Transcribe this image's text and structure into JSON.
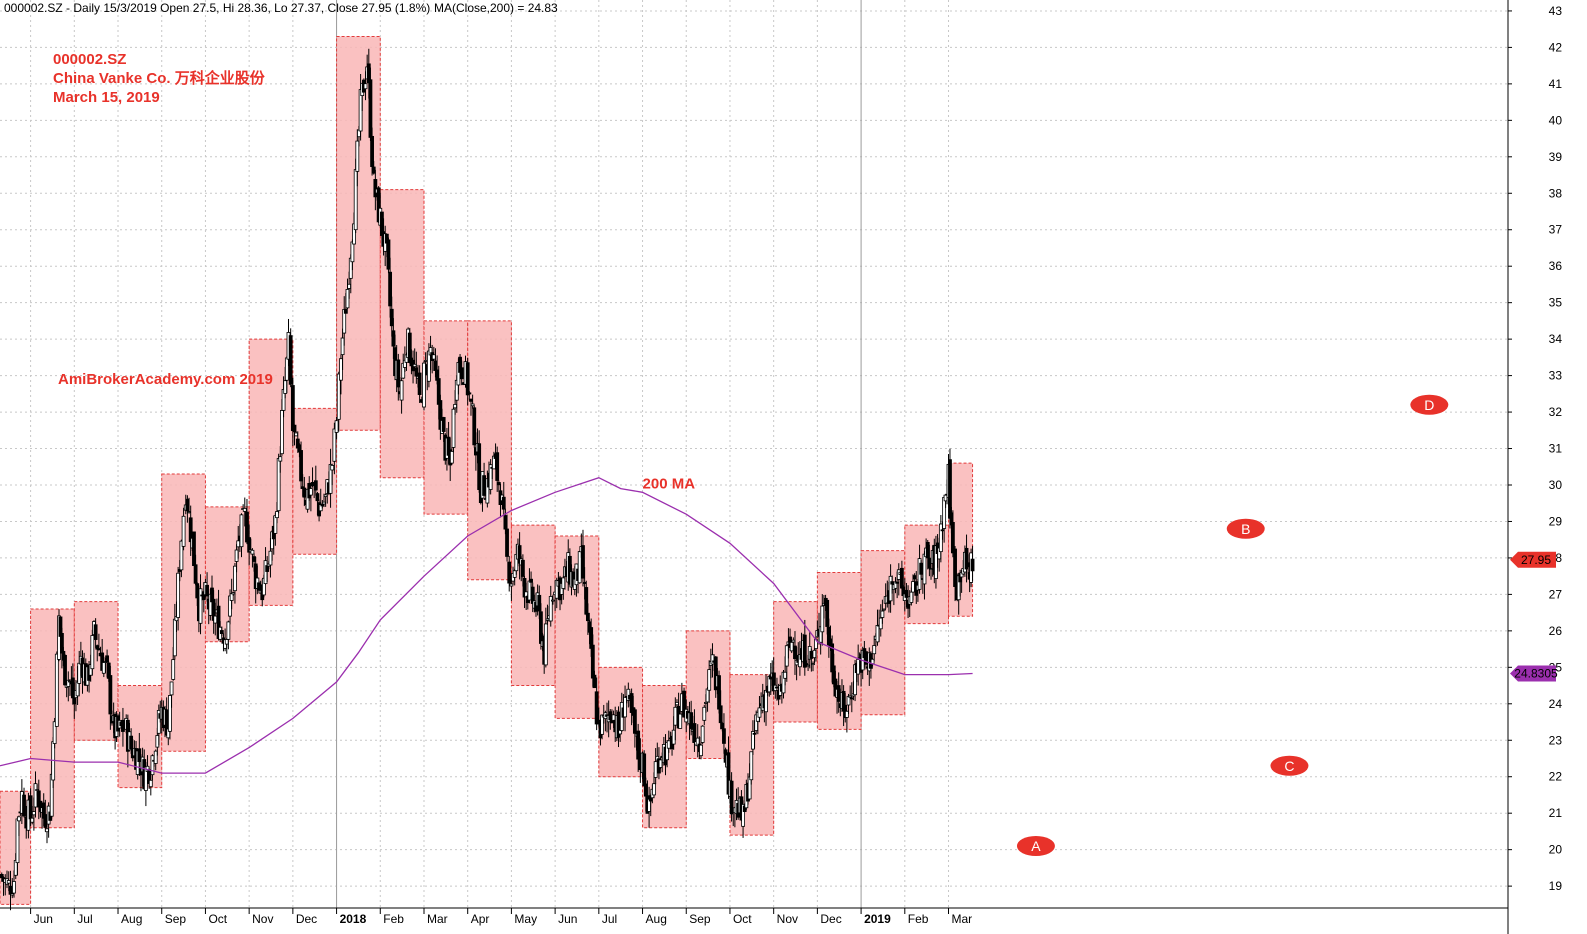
{
  "header": {
    "symbol_line": "000002.SZ - Daily 15/3/2019 Open 27.5, Hi 28.36, Lo 27.37, Close 27.95 (1.8%)",
    "ma_line": "MA(Close,200) = 24.83"
  },
  "annotations": {
    "ticker": "000002.SZ",
    "company": "China Vanke Co. 万科企业股份",
    "date": "March 15, 2019",
    "brand": "AmiBrokerAcademy.com  2019",
    "ma_label": "200 MA"
  },
  "markers": [
    {
      "label": "A",
      "x": 24.0,
      "y": 20.1
    },
    {
      "label": "B",
      "x": 28.8,
      "y": 28.8
    },
    {
      "label": "C",
      "x": 29.8,
      "y": 22.3
    },
    {
      "label": "D",
      "x": 33.0,
      "y": 32.2
    }
  ],
  "price_tags": {
    "close": "27.95",
    "ma": "24.8305"
  },
  "colors": {
    "box_fill": "#f9b6b6",
    "box_border": "#e23b3b",
    "ma_line": "#9b2fae",
    "candle": "#000000",
    "annotation": "#e8322a",
    "close_tag": "#e8322a",
    "ma_tag": "#9b2fae",
    "grid": "#c8c8c8"
  },
  "chart_data": {
    "type": "candlestick",
    "title": "000002.SZ - Daily",
    "x_unit": "month index (0 = start of May 2017)",
    "xlim": [
      0.3,
      34.8
    ],
    "ylim": [
      18.4,
      43.3
    ],
    "yticks": [
      19,
      20,
      21,
      22,
      23,
      24,
      25,
      26,
      27,
      28,
      29,
      30,
      31,
      32,
      33,
      34,
      35,
      36,
      37,
      38,
      39,
      40,
      41,
      42,
      43
    ],
    "xticks": [
      {
        "label": "Jun",
        "x": 1
      },
      {
        "label": "Jul",
        "x": 2
      },
      {
        "label": "Aug",
        "x": 3
      },
      {
        "label": "Sep",
        "x": 4
      },
      {
        "label": "Oct",
        "x": 5
      },
      {
        "label": "Nov",
        "x": 6
      },
      {
        "label": "Dec",
        "x": 7
      },
      {
        "label": "2018",
        "x": 8,
        "bold": true
      },
      {
        "label": "Feb",
        "x": 9
      },
      {
        "label": "Mar",
        "x": 10
      },
      {
        "label": "Apr",
        "x": 11
      },
      {
        "label": "May",
        "x": 12
      },
      {
        "label": "Jun",
        "x": 13
      },
      {
        "label": "Jul",
        "x": 14
      },
      {
        "label": "Aug",
        "x": 15
      },
      {
        "label": "Sep",
        "x": 16
      },
      {
        "label": "Oct",
        "x": 17
      },
      {
        "label": "Nov",
        "x": 18
      },
      {
        "label": "Dec",
        "x": 19
      },
      {
        "label": "2019",
        "x": 20,
        "bold": true
      },
      {
        "label": "Feb",
        "x": 21
      },
      {
        "label": "Mar",
        "x": 22
      }
    ],
    "boxes": [
      {
        "x0": 0.3,
        "x1": 1.0,
        "high": 21.6,
        "low": 18.5
      },
      {
        "x0": 1.0,
        "x1": 2.0,
        "high": 26.6,
        "low": 20.6
      },
      {
        "x0": 2.0,
        "x1": 3.0,
        "high": 26.8,
        "low": 23.0
      },
      {
        "x0": 3.0,
        "x1": 4.0,
        "high": 24.5,
        "low": 21.7
      },
      {
        "x0": 4.0,
        "x1": 5.0,
        "high": 30.3,
        "low": 22.7
      },
      {
        "x0": 5.0,
        "x1": 6.0,
        "high": 29.4,
        "low": 25.7
      },
      {
        "x0": 6.0,
        "x1": 7.0,
        "high": 34.0,
        "low": 26.7
      },
      {
        "x0": 7.0,
        "x1": 8.0,
        "high": 32.1,
        "low": 28.1
      },
      {
        "x0": 8.0,
        "x1": 9.0,
        "high": 42.3,
        "low": 31.5
      },
      {
        "x0": 9.0,
        "x1": 10.0,
        "high": 38.1,
        "low": 30.2
      },
      {
        "x0": 10.0,
        "x1": 11.0,
        "high": 34.5,
        "low": 29.2
      },
      {
        "x0": 11.0,
        "x1": 12.0,
        "high": 34.5,
        "low": 27.4
      },
      {
        "x0": 12.0,
        "x1": 13.0,
        "high": 28.9,
        "low": 24.5
      },
      {
        "x0": 13.0,
        "x1": 14.0,
        "high": 28.6,
        "low": 23.6
      },
      {
        "x0": 14.0,
        "x1": 15.0,
        "high": 25.0,
        "low": 22.0
      },
      {
        "x0": 15.0,
        "x1": 16.0,
        "high": 24.5,
        "low": 20.6
      },
      {
        "x0": 16.0,
        "x1": 17.0,
        "high": 26.0,
        "low": 22.5
      },
      {
        "x0": 17.0,
        "x1": 18.0,
        "high": 24.8,
        "low": 20.4
      },
      {
        "x0": 18.0,
        "x1": 19.0,
        "high": 26.8,
        "low": 23.5
      },
      {
        "x0": 19.0,
        "x1": 20.0,
        "high": 27.6,
        "low": 23.3
      },
      {
        "x0": 20.0,
        "x1": 21.0,
        "high": 28.2,
        "low": 23.7
      },
      {
        "x0": 21.0,
        "x1": 22.0,
        "high": 28.9,
        "low": 26.2
      },
      {
        "x0": 22.0,
        "x1": 22.55,
        "high": 30.6,
        "low": 26.4
      }
    ],
    "price_path": [
      [
        0.3,
        19.3
      ],
      [
        0.5,
        19.0
      ],
      [
        0.62,
        19.2
      ],
      [
        0.7,
        20.8
      ],
      [
        0.8,
        21.5
      ],
      [
        0.9,
        21.0
      ],
      [
        1.0,
        20.9
      ],
      [
        1.15,
        21.6
      ],
      [
        1.3,
        20.9
      ],
      [
        1.45,
        21.1
      ],
      [
        1.55,
        23.9
      ],
      [
        1.65,
        26.3
      ],
      [
        1.75,
        25.0
      ],
      [
        1.9,
        24.6
      ],
      [
        2.0,
        24.0
      ],
      [
        2.15,
        25.3
      ],
      [
        2.3,
        24.6
      ],
      [
        2.45,
        25.9
      ],
      [
        2.6,
        25.4
      ],
      [
        2.75,
        24.8
      ],
      [
        2.9,
        23.3
      ],
      [
        3.0,
        23.2
      ],
      [
        3.15,
        23.4
      ],
      [
        3.3,
        22.8
      ],
      [
        3.45,
        22.6
      ],
      [
        3.6,
        22.1
      ],
      [
        3.75,
        22.3
      ],
      [
        3.9,
        23.3
      ],
      [
        4.0,
        23.8
      ],
      [
        4.15,
        23.4
      ],
      [
        4.3,
        25.9
      ],
      [
        4.45,
        28.6
      ],
      [
        4.55,
        29.9
      ],
      [
        4.7,
        28.4
      ],
      [
        4.85,
        26.7
      ],
      [
        5.0,
        26.9
      ],
      [
        5.15,
        26.5
      ],
      [
        5.3,
        26.2
      ],
      [
        5.45,
        25.9
      ],
      [
        5.6,
        26.9
      ],
      [
        5.75,
        28.4
      ],
      [
        5.9,
        29.1
      ],
      [
        6.0,
        28.5
      ],
      [
        6.15,
        27.5
      ],
      [
        6.3,
        27.1
      ],
      [
        6.45,
        27.9
      ],
      [
        6.6,
        29.0
      ],
      [
        6.75,
        31.8
      ],
      [
        6.9,
        33.8
      ],
      [
        7.0,
        31.5
      ],
      [
        7.15,
        30.5
      ],
      [
        7.3,
        29.7
      ],
      [
        7.45,
        30.0
      ],
      [
        7.6,
        29.4
      ],
      [
        7.75,
        29.6
      ],
      [
        7.9,
        30.6
      ],
      [
        8.0,
        31.8
      ],
      [
        8.1,
        33.6
      ],
      [
        8.25,
        35.4
      ],
      [
        8.4,
        37.6
      ],
      [
        8.55,
        40.4
      ],
      [
        8.7,
        41.6
      ],
      [
        8.85,
        38.2
      ],
      [
        9.0,
        37.3
      ],
      [
        9.15,
        36.2
      ],
      [
        9.3,
        33.6
      ],
      [
        9.45,
        32.5
      ],
      [
        9.6,
        34.0
      ],
      [
        9.75,
        33.4
      ],
      [
        9.9,
        32.3
      ],
      [
        10.0,
        33.0
      ],
      [
        10.15,
        33.7
      ],
      [
        10.3,
        32.6
      ],
      [
        10.45,
        31.2
      ],
      [
        10.6,
        30.5
      ],
      [
        10.75,
        33.3
      ],
      [
        10.9,
        33.2
      ],
      [
        11.0,
        32.7
      ],
      [
        11.15,
        31.5
      ],
      [
        11.3,
        29.9
      ],
      [
        11.45,
        30.1
      ],
      [
        11.6,
        30.6
      ],
      [
        11.75,
        29.9
      ],
      [
        11.9,
        27.9
      ],
      [
        12.0,
        27.5
      ],
      [
        12.15,
        28.1
      ],
      [
        12.3,
        27.3
      ],
      [
        12.45,
        26.9
      ],
      [
        12.6,
        26.6
      ],
      [
        12.75,
        25.4
      ],
      [
        12.9,
        26.9
      ],
      [
        13.0,
        27.4
      ],
      [
        13.15,
        27.2
      ],
      [
        13.3,
        27.7
      ],
      [
        13.45,
        27.3
      ],
      [
        13.6,
        27.9
      ],
      [
        13.75,
        26.1
      ],
      [
        13.9,
        24.2
      ],
      [
        14.0,
        23.3
      ],
      [
        14.15,
        23.5
      ],
      [
        14.3,
        23.9
      ],
      [
        14.45,
        23.1
      ],
      [
        14.6,
        24.3
      ],
      [
        14.75,
        23.6
      ],
      [
        14.9,
        22.6
      ],
      [
        15.0,
        22.4
      ],
      [
        15.15,
        21.0
      ],
      [
        15.3,
        22.3
      ],
      [
        15.45,
        22.8
      ],
      [
        15.6,
        22.6
      ],
      [
        15.75,
        23.5
      ],
      [
        15.9,
        24.0
      ],
      [
        16.0,
        23.8
      ],
      [
        16.15,
        23.4
      ],
      [
        16.3,
        23.0
      ],
      [
        16.45,
        24.2
      ],
      [
        16.6,
        25.1
      ],
      [
        16.75,
        24.3
      ],
      [
        16.9,
        22.8
      ],
      [
        17.0,
        21.5
      ],
      [
        17.15,
        21.2
      ],
      [
        17.3,
        20.8
      ],
      [
        17.45,
        22.1
      ],
      [
        17.6,
        23.5
      ],
      [
        17.75,
        24.2
      ],
      [
        17.9,
        24.5
      ],
      [
        18.0,
        24.5
      ],
      [
        18.15,
        24.1
      ],
      [
        18.3,
        25.3
      ],
      [
        18.45,
        25.8
      ],
      [
        18.6,
        25.2
      ],
      [
        18.75,
        25.5
      ],
      [
        18.9,
        25.1
      ],
      [
        19.0,
        25.8
      ],
      [
        19.15,
        27.0
      ],
      [
        19.3,
        25.4
      ],
      [
        19.45,
        24.4
      ],
      [
        19.6,
        23.7
      ],
      [
        19.75,
        24.2
      ],
      [
        19.9,
        25.1
      ],
      [
        20.0,
        25.2
      ],
      [
        20.15,
        25.0
      ],
      [
        20.3,
        25.6
      ],
      [
        20.45,
        26.3
      ],
      [
        20.6,
        26.9
      ],
      [
        20.75,
        27.7
      ],
      [
        20.9,
        27.2
      ],
      [
        21.0,
        27.0
      ],
      [
        21.15,
        26.8
      ],
      [
        21.3,
        27.4
      ],
      [
        21.45,
        28.0
      ],
      [
        21.6,
        27.7
      ],
      [
        21.75,
        28.1
      ],
      [
        21.9,
        29.5
      ],
      [
        22.0,
        30.2
      ],
      [
        22.1,
        28.0
      ],
      [
        22.2,
        27.2
      ],
      [
        22.3,
        27.9
      ],
      [
        22.45,
        27.6
      ],
      [
        22.55,
        27.95
      ]
    ],
    "ma_path": [
      [
        0.3,
        22.3
      ],
      [
        1.0,
        22.5
      ],
      [
        2.0,
        22.4
      ],
      [
        3.0,
        22.4
      ],
      [
        4.0,
        22.1
      ],
      [
        5.0,
        22.1
      ],
      [
        6.0,
        22.8
      ],
      [
        7.0,
        23.6
      ],
      [
        8.0,
        24.6
      ],
      [
        8.5,
        25.4
      ],
      [
        9.0,
        26.3
      ],
      [
        10.0,
        27.5
      ],
      [
        11.0,
        28.6
      ],
      [
        12.0,
        29.3
      ],
      [
        13.0,
        29.8
      ],
      [
        14.0,
        30.2
      ],
      [
        14.5,
        29.9
      ],
      [
        15.0,
        29.8
      ],
      [
        16.0,
        29.2
      ],
      [
        17.0,
        28.4
      ],
      [
        18.0,
        27.3
      ],
      [
        19.0,
        25.7
      ],
      [
        20.0,
        25.2
      ],
      [
        21.0,
        24.8
      ],
      [
        22.0,
        24.8
      ],
      [
        22.55,
        24.83
      ]
    ]
  }
}
